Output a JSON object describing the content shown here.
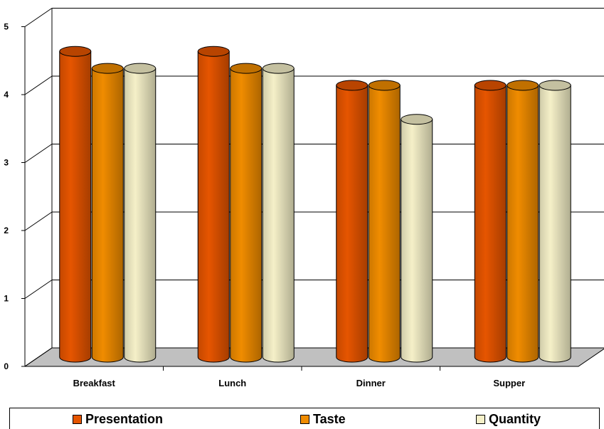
{
  "chart_data": {
    "type": "bar",
    "categories": [
      "Breakfast",
      "Lunch",
      "Dinner",
      "Supper"
    ],
    "series": [
      {
        "name": "Presentation",
        "values": [
          4.5,
          4.5,
          4.0,
          4.0
        ],
        "color": "#e65500"
      },
      {
        "name": "Taste",
        "values": [
          4.25,
          4.25,
          4.0,
          4.0
        ],
        "color": "#f08c00"
      },
      {
        "name": "Quantity",
        "values": [
          4.25,
          4.25,
          3.5,
          4.0
        ],
        "color": "#f5f0c8"
      }
    ],
    "y_ticks": [
      "0",
      "1",
      "2",
      "3",
      "4",
      "5"
    ],
    "ylim": [
      0,
      5
    ],
    "grid": true,
    "legend_position": "bottom",
    "floor_color": "#c0c0c0",
    "style": "3d-cylinder"
  }
}
